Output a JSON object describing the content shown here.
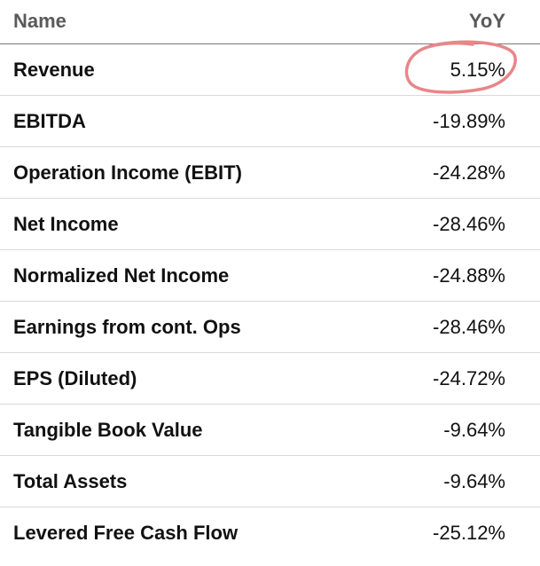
{
  "header": {
    "name_label": "Name",
    "yoy_label": "YoY"
  },
  "rows": [
    {
      "label": "Revenue",
      "value": "5.15%"
    },
    {
      "label": "EBITDA",
      "value": "-19.89%"
    },
    {
      "label": "Operation Income (EBIT)",
      "value": "-24.28%"
    },
    {
      "label": "Net Income",
      "value": "-28.46%"
    },
    {
      "label": "Normalized Net Income",
      "value": "-24.88%"
    },
    {
      "label": "Earnings from cont. Ops",
      "value": "-28.46%"
    },
    {
      "label": "EPS (Diluted)",
      "value": "-24.72%"
    },
    {
      "label": "Tangible Book Value",
      "value": "-9.64%"
    },
    {
      "label": "Total Assets",
      "value": "-9.64%"
    },
    {
      "label": "Levered Free Cash Flow",
      "value": "-25.12%"
    }
  ],
  "annotation": {
    "color": "#e8868a",
    "shape": "hand-drawn-circle",
    "target": "rows.0.value"
  }
}
